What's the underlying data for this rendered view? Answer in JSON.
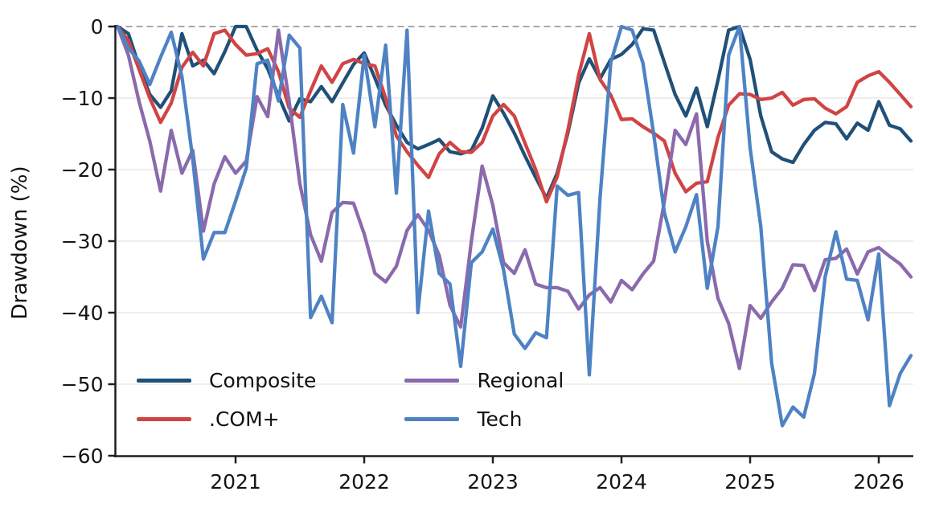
{
  "chart_data": {
    "type": "line",
    "title": "",
    "xlabel": "",
    "ylabel": "Drawdown (%)",
    "x_unit": "decimal years, monthly sampling",
    "x_start": 2020.0833,
    "x_step": 0.0833333,
    "n_points": 75,
    "xlim": [
      2020.03,
      2026.33
    ],
    "ylim": [
      -60,
      2
    ],
    "x_ticks": [
      2021,
      2022,
      2023,
      2024,
      2025,
      2026
    ],
    "y_ticks": [
      0,
      -10,
      -20,
      -30,
      -40,
      -50,
      -60
    ],
    "grid": "horizontal-only",
    "zero_line_style": "dashed-gray",
    "legend_position": "lower-left, two columns, no frame",
    "series": [
      {
        "name": "Composite",
        "color": "#205078",
        "values": [
          0,
          -1,
          -5.5,
          -9.5,
          -11.3,
          -9,
          -1,
          -5.5,
          -4.7,
          -6.6,
          -3.5,
          0,
          0,
          -3.3,
          -5.9,
          -9.7,
          -13.2,
          -10.1,
          -10.5,
          -8.4,
          -10.5,
          -7.9,
          -5.3,
          -3.7,
          -7.2,
          -11,
          -13.8,
          -16.2,
          -17.1,
          -16.5,
          -15.8,
          -17.5,
          -17.8,
          -17.3,
          -14.2,
          -9.7,
          -12.1,
          -14.9,
          -18.1,
          -21.1,
          -24,
          -20.5,
          -14.9,
          -7.9,
          -4.5,
          -7.3,
          -4.6,
          -3.9,
          -2.5,
          -0.3,
          -0.5,
          -5,
          -9.5,
          -12.5,
          -8.6,
          -14,
          -7.5,
          -0.5,
          0,
          -4.6,
          -12.5,
          -17.5,
          -18.5,
          -19,
          -16.5,
          -14.5,
          -13.4,
          -13.6,
          -15.7,
          -13.5,
          -14.5,
          -10.5,
          -13.8,
          -14.3,
          -16
        ]
      },
      {
        "name": ".COM+",
        "color": "#d04444",
        "values": [
          0,
          -2,
          -6,
          -10,
          -13.4,
          -10.7,
          -5.7,
          -3.6,
          -5.5,
          -1,
          -0.5,
          -2.5,
          -4,
          -3.8,
          -3.1,
          -6.3,
          -11.4,
          -12.7,
          -9,
          -5.5,
          -7.8,
          -5.2,
          -4.6,
          -5.2,
          -5.5,
          -10,
          -15.3,
          -17.5,
          -19.4,
          -21.1,
          -17.8,
          -16.2,
          -17.5,
          -17.6,
          -16.2,
          -12.5,
          -10.9,
          -12.5,
          -16.3,
          -20,
          -24.5,
          -21,
          -14.5,
          -6.8,
          -1,
          -7.4,
          -9.6,
          -13,
          -12.9,
          -14,
          -14.9,
          -16,
          -20.5,
          -23.1,
          -21.9,
          -21.7,
          -15.5,
          -11,
          -9.4,
          -9.5,
          -10.2,
          -10,
          -9.2,
          -11,
          -10.2,
          -10.1,
          -11.4,
          -12.2,
          -11.2,
          -7.8,
          -6.9,
          -6.3,
          -7.8,
          -9.5,
          -11.2
        ]
      },
      {
        "name": "Regional",
        "color": "#8a6aac",
        "values": [
          0,
          -4,
          -10.5,
          -16,
          -23,
          -14.5,
          -20.5,
          -17.3,
          -28.6,
          -22,
          -18.2,
          -20.5,
          -18.8,
          -9.8,
          -12.6,
          -0.5,
          -10.5,
          -22,
          -29.1,
          -32.8,
          -26,
          -24.6,
          -24.7,
          -29,
          -34.5,
          -35.7,
          -33.5,
          -28.5,
          -26.3,
          -28.5,
          -32,
          -39,
          -42,
          -30,
          -19.5,
          -25,
          -33,
          -34.5,
          -31.2,
          -36,
          -36.5,
          -36.5,
          -37,
          -39.5,
          -37.5,
          -36.5,
          -38.5,
          -35.5,
          -36.8,
          -34.6,
          -32.8,
          -24.5,
          -14.5,
          -16.5,
          -12.2,
          -30,
          -38,
          -41.5,
          -47.8,
          -39,
          -40.8,
          -38.5,
          -36.6,
          -33.3,
          -33.4,
          -36.9,
          -32.6,
          -32.4,
          -31.1,
          -34.6,
          -31.5,
          -30.9,
          -32.1,
          -33.2,
          -35
        ]
      },
      {
        "name": "Tech",
        "color": "#4e82c4",
        "values": [
          0,
          -3,
          -4.8,
          -8.1,
          -4.3,
          -0.8,
          -7,
          -18.5,
          -32.5,
          -28.8,
          -28.8,
          -24.4,
          -19.8,
          -5.2,
          -4.7,
          -10.4,
          -1.2,
          -3,
          -40.7,
          -37.7,
          -41.4,
          -10.9,
          -17.7,
          -4,
          -14,
          -2.6,
          -23.3,
          -0.5,
          -40,
          -25.8,
          -34.5,
          -36,
          -47.5,
          -33,
          -31.5,
          -28.3,
          -34,
          -43,
          -45,
          -42.8,
          -43.5,
          -22.3,
          -23.6,
          -23.2,
          -48.7,
          -24,
          -5,
          0,
          -0.5,
          -5.1,
          -15,
          -26,
          -31.5,
          -28,
          -23.5,
          -36.6,
          -28,
          -4,
          0,
          -17,
          -28,
          -47,
          -55.8,
          -53.2,
          -54.6,
          -48.5,
          -35,
          -28.7,
          -35.3,
          -35.5,
          -41,
          -31.8,
          -53,
          -48.5,
          -46
        ]
      }
    ],
    "colors": {
      "grid": "#e3e3e3",
      "zero_dash": "#9c9c9c",
      "spine": "#202020",
      "text": "#141414"
    }
  }
}
